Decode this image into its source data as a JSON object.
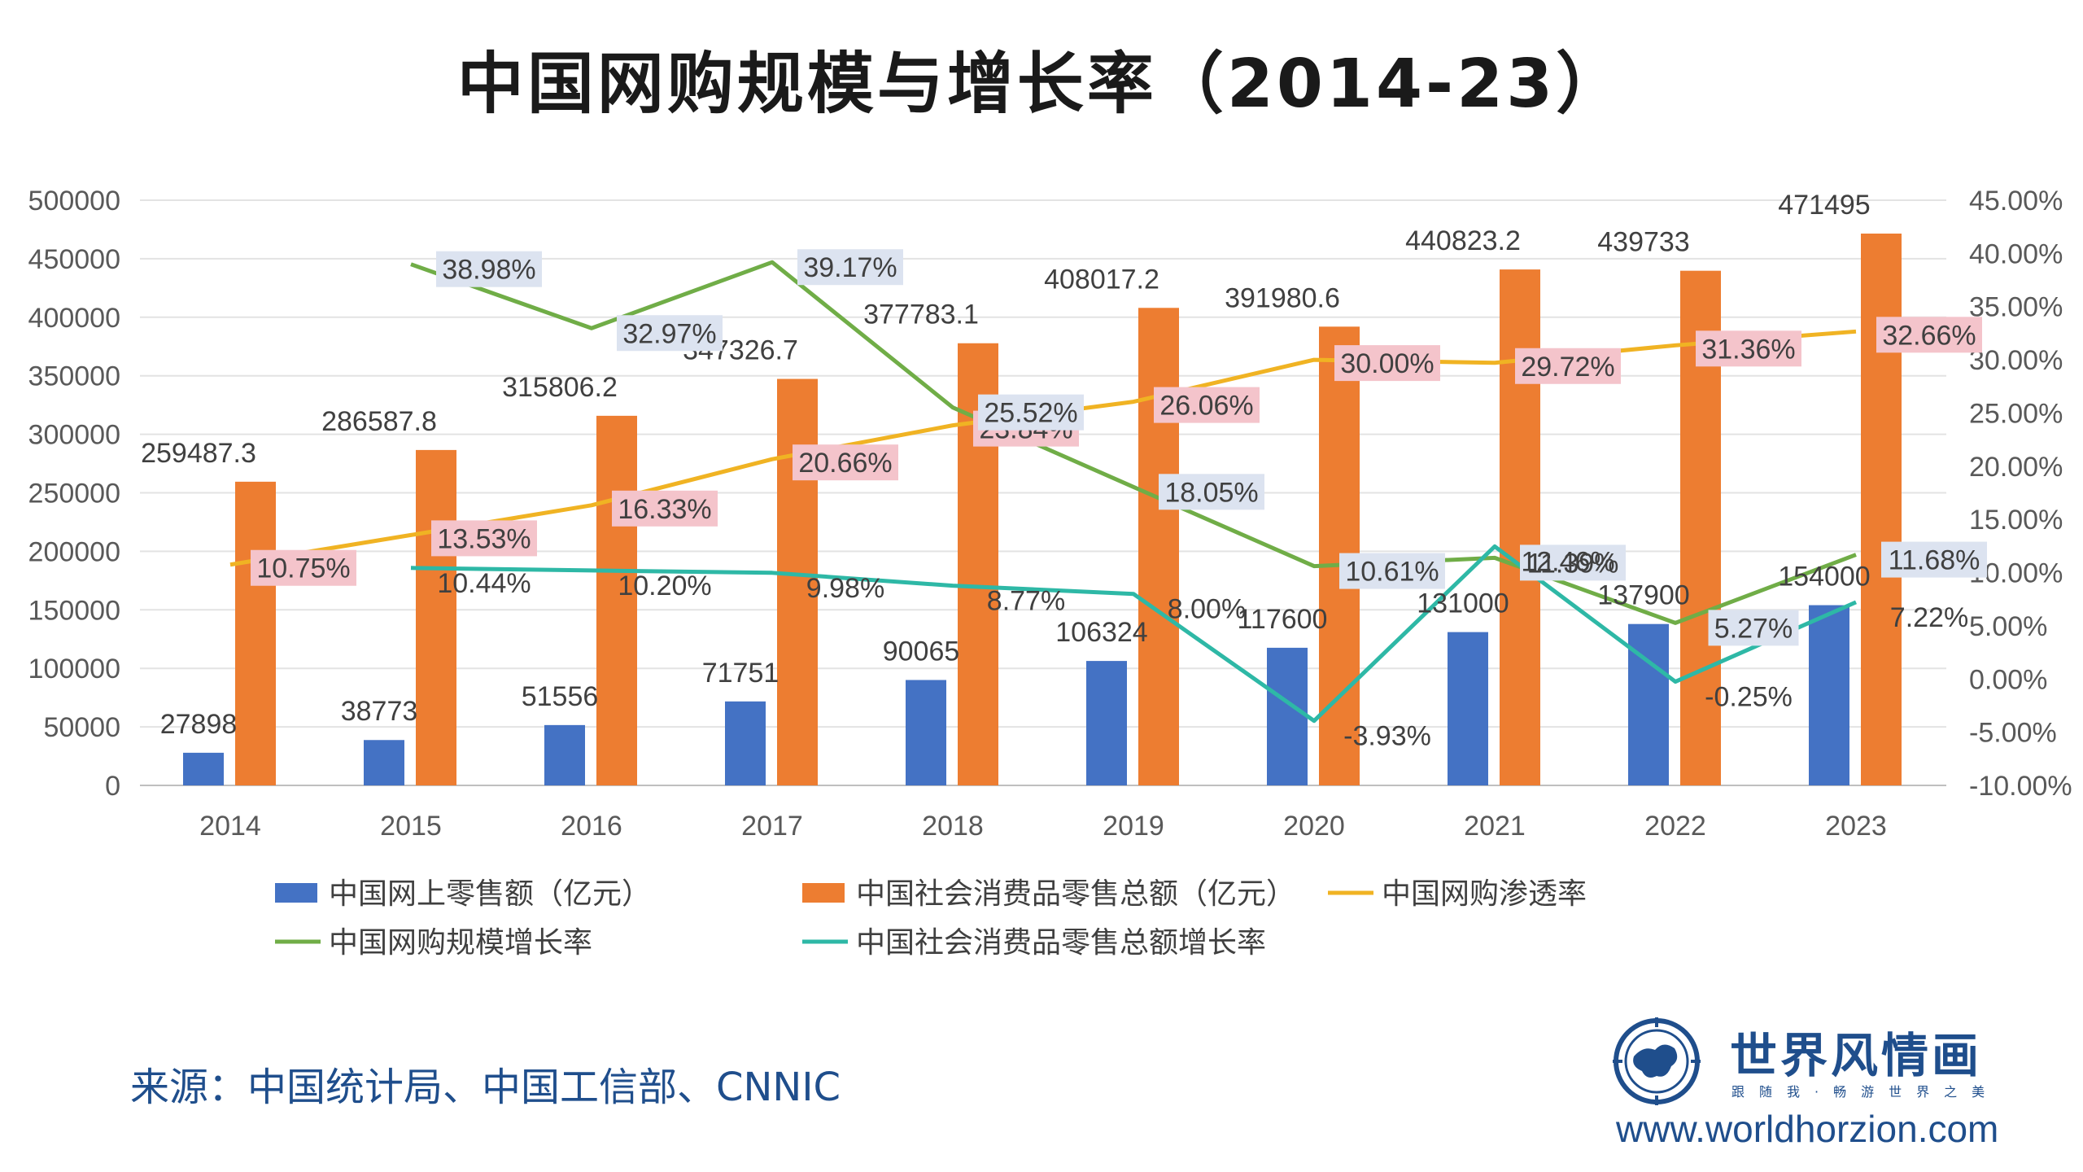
{
  "title": "中国网购规模与增长率（2014-23）",
  "source": "来源：中国统计局、中国工信部、CNNIC",
  "brand": {
    "name": "世界风情画",
    "slogan": "跟随我·畅游世界之美",
    "url": "www.worldhorzion.com",
    "logo_icon": "globe-compass-icon"
  },
  "colors": {
    "online_retail": "#4472C4",
    "total_retail": "#ED7D31",
    "penetration": "#F0B323",
    "online_growth": "#70AD47",
    "total_growth": "#2EB8A6",
    "label_blue_bg": "#DCE3F0",
    "label_pink_bg": "#F4C4CB"
  },
  "chart_data": {
    "type": "bar",
    "categories": [
      "2014",
      "2015",
      "2016",
      "2017",
      "2018",
      "2019",
      "2020",
      "2021",
      "2022",
      "2023"
    ],
    "left_axis": {
      "ticks": [
        "0",
        "50000",
        "100000",
        "150000",
        "200000",
        "250000",
        "300000",
        "350000",
        "400000",
        "450000",
        "500000"
      ],
      "ylim": [
        0,
        500000
      ]
    },
    "right_axis": {
      "ticks": [
        "-10.00%",
        "-5.00%",
        "0.00%",
        "5.00%",
        "10.00%",
        "15.00%",
        "20.00%",
        "25.00%",
        "30.00%",
        "35.00%",
        "40.00%",
        "45.00%"
      ],
      "ylim": [
        -10,
        45
      ]
    },
    "grid": true,
    "legend_position": "bottom",
    "series": [
      {
        "name": "中国网上零售额（亿元）",
        "kind": "bar",
        "axis": "left",
        "values": [
          27898,
          38773,
          51556,
          71751,
          90065,
          106324,
          117600,
          131000,
          137900,
          154000
        ],
        "labels": [
          "27898",
          "38773",
          "51556",
          "71751",
          "90065",
          "106324",
          "117600",
          "131000",
          "137900",
          "154000"
        ]
      },
      {
        "name": "中国社会消费品零售总额（亿元）",
        "kind": "bar",
        "axis": "left",
        "values": [
          259487.3,
          286587.8,
          315806.2,
          347326.7,
          377783.1,
          408017.2,
          391980.6,
          440823.2,
          439733,
          471495
        ],
        "labels": [
          "259487.3",
          "286587.8",
          "315806.2",
          "347326.7",
          "377783.1",
          "408017.2",
          "391980.6",
          "440823.2",
          "439733",
          "471495"
        ]
      },
      {
        "name": "中国网购渗透率",
        "kind": "line",
        "axis": "right",
        "values": [
          10.75,
          13.53,
          16.33,
          20.66,
          23.84,
          26.06,
          30.0,
          29.72,
          31.36,
          32.66
        ],
        "labels": [
          "10.75%",
          "13.53%",
          "16.33%",
          "20.66%",
          "23.84%",
          "26.06%",
          "30.00%",
          "29.72%",
          "31.36%",
          "32.66%"
        ]
      },
      {
        "name": "中国网购规模增长率",
        "kind": "line",
        "axis": "right",
        "values": [
          null,
          38.98,
          32.97,
          39.17,
          25.52,
          18.05,
          10.61,
          11.39,
          5.27,
          11.68
        ],
        "labels": [
          null,
          "38.98%",
          "32.97%",
          "39.17%",
          "25.52%",
          "18.05%",
          "10.61%",
          "11.39%",
          "5.27%",
          "11.68%"
        ]
      },
      {
        "name": "中国社会消费品零售总额增长率",
        "kind": "line",
        "axis": "right",
        "values": [
          null,
          10.44,
          10.2,
          9.98,
          8.77,
          8.0,
          -3.93,
          12.46,
          -0.25,
          7.22
        ],
        "labels": [
          null,
          "10.44%",
          "10.20%",
          "9.98%",
          "8.77%",
          "8.00%",
          "-3.93%",
          "12.46%",
          "-0.25%",
          "7.22%"
        ]
      }
    ]
  }
}
